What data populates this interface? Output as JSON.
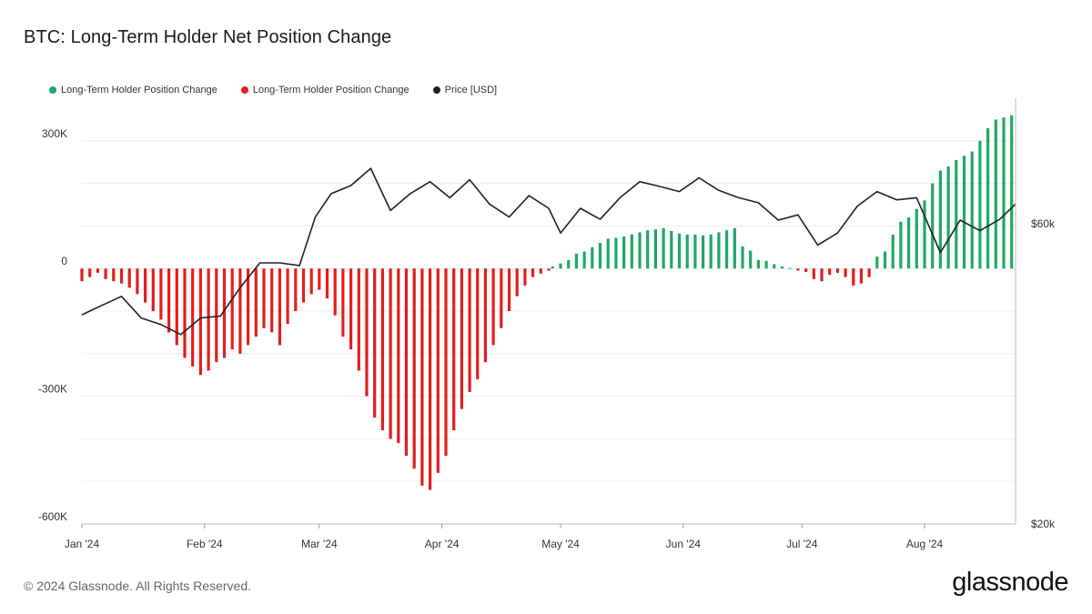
{
  "title": "BTC: Long-Term Holder Net Position Change",
  "legend": [
    {
      "label": "Long-Term Holder Position Change",
      "color": "#20a866"
    },
    {
      "label": "Long-Term Holder Position Change",
      "color": "#e11f1f"
    },
    {
      "label": "Price [USD]",
      "color": "#222222"
    }
  ],
  "footer": {
    "copyright": "© 2024 Glassnode. All Rights Reserved.",
    "logo": "glassnode"
  },
  "chart_data": {
    "type": "bar",
    "title": "BTC: Long-Term Holder Net Position Change",
    "x_range": [
      "2024-01-01",
      "2024-08-24"
    ],
    "x_ticks": [
      "Jan '24",
      "Feb '24",
      "Mar '24",
      "Apr '24",
      "May '24",
      "Jun '24",
      "Jul '24",
      "Aug '24"
    ],
    "y_left": {
      "ticks": [
        "300K",
        "0",
        "-300K",
        "-600K"
      ],
      "ylim": [
        -600000,
        400000
      ]
    },
    "y_right": {
      "ticks": [
        "$60k",
        "$20k"
      ],
      "scale": "log",
      "ylim": [
        20000,
        95000
      ]
    },
    "grid": true,
    "legend_position": "top-left",
    "series": [
      {
        "name": "Long-Term Holder Position Change",
        "color": "#20a866",
        "x": [
          "2024-04-29",
          "2024-05-01",
          "2024-05-03",
          "2024-05-05",
          "2024-05-07",
          "2024-05-09",
          "2024-05-11",
          "2024-05-13",
          "2024-05-15",
          "2024-05-17",
          "2024-05-19",
          "2024-05-21",
          "2024-05-23",
          "2024-05-25",
          "2024-05-27",
          "2024-05-29",
          "2024-05-31",
          "2024-06-02",
          "2024-06-04",
          "2024-06-06",
          "2024-06-08",
          "2024-06-10",
          "2024-06-12",
          "2024-06-14",
          "2024-06-16",
          "2024-06-18",
          "2024-06-20",
          "2024-06-22",
          "2024-06-24",
          "2024-06-26",
          "2024-06-28",
          "2024-07-20",
          "2024-07-22",
          "2024-07-24",
          "2024-07-26",
          "2024-07-28",
          "2024-07-30",
          "2024-08-01",
          "2024-08-03",
          "2024-08-05",
          "2024-08-07",
          "2024-08-09",
          "2024-08-11",
          "2024-08-13",
          "2024-08-15",
          "2024-08-17",
          "2024-08-19",
          "2024-08-21",
          "2024-08-23"
        ],
        "values": [
          5000,
          12000,
          20000,
          35000,
          40000,
          50000,
          60000,
          70000,
          72000,
          75000,
          80000,
          85000,
          90000,
          92000,
          95000,
          88000,
          82000,
          80000,
          80000,
          78000,
          80000,
          85000,
          90000,
          95000,
          52000,
          42000,
          20000,
          18000,
          10000,
          5000,
          1000,
          28000,
          40000,
          80000,
          110000,
          120000,
          140000,
          160000,
          200000,
          230000,
          240000,
          255000,
          265000,
          275000,
          300000,
          330000,
          350000,
          355000,
          360000
        ]
      },
      {
        "name": "Long-Term Holder Position Change",
        "color": "#e11f1f",
        "x": [
          "2024-01-01",
          "2024-01-03",
          "2024-01-05",
          "2024-01-07",
          "2024-01-09",
          "2024-01-11",
          "2024-01-13",
          "2024-01-15",
          "2024-01-17",
          "2024-01-19",
          "2024-01-21",
          "2024-01-23",
          "2024-01-25",
          "2024-01-27",
          "2024-01-29",
          "2024-01-31",
          "2024-02-02",
          "2024-02-04",
          "2024-02-06",
          "2024-02-08",
          "2024-02-10",
          "2024-02-12",
          "2024-02-14",
          "2024-02-16",
          "2024-02-18",
          "2024-02-20",
          "2024-02-22",
          "2024-02-24",
          "2024-02-26",
          "2024-02-28",
          "2024-03-01",
          "2024-03-03",
          "2024-03-05",
          "2024-03-07",
          "2024-03-09",
          "2024-03-11",
          "2024-03-13",
          "2024-03-15",
          "2024-03-17",
          "2024-03-19",
          "2024-03-21",
          "2024-03-23",
          "2024-03-25",
          "2024-03-27",
          "2024-03-29",
          "2024-03-31",
          "2024-04-02",
          "2024-04-04",
          "2024-04-06",
          "2024-04-08",
          "2024-04-10",
          "2024-04-12",
          "2024-04-14",
          "2024-04-16",
          "2024-04-18",
          "2024-04-20",
          "2024-04-22",
          "2024-04-24",
          "2024-04-26",
          "2024-04-28",
          "2024-06-30",
          "2024-07-02",
          "2024-07-04",
          "2024-07-06",
          "2024-07-08",
          "2024-07-10",
          "2024-07-12",
          "2024-07-14",
          "2024-07-16",
          "2024-07-18"
        ],
        "values": [
          -30000,
          -20000,
          -10000,
          -25000,
          -30000,
          -35000,
          -45000,
          -60000,
          -80000,
          -100000,
          -120000,
          -150000,
          -180000,
          -210000,
          -230000,
          -250000,
          -240000,
          -220000,
          -210000,
          -190000,
          -200000,
          -180000,
          -160000,
          -140000,
          -150000,
          -180000,
          -130000,
          -100000,
          -80000,
          -60000,
          -50000,
          -70000,
          -110000,
          -160000,
          -190000,
          -240000,
          -300000,
          -350000,
          -380000,
          -400000,
          -410000,
          -440000,
          -470000,
          -510000,
          -520000,
          -480000,
          -440000,
          -380000,
          -330000,
          -290000,
          -260000,
          -220000,
          -180000,
          -140000,
          -100000,
          -65000,
          -40000,
          -20000,
          -12000,
          -5000,
          -5000,
          -8000,
          -25000,
          -30000,
          -15000,
          -10000,
          -20000,
          -40000,
          -35000,
          -20000
        ]
      },
      {
        "name": "Price [USD]",
        "color": "#222222",
        "x": [
          "2024-01-01",
          "2024-01-06",
          "2024-01-11",
          "2024-01-16",
          "2024-01-21",
          "2024-01-26",
          "2024-01-31",
          "2024-02-05",
          "2024-02-10",
          "2024-02-15",
          "2024-02-20",
          "2024-02-25",
          "2024-02-29",
          "2024-03-04",
          "2024-03-09",
          "2024-03-14",
          "2024-03-19",
          "2024-03-24",
          "2024-03-29",
          "2024-04-03",
          "2024-04-08",
          "2024-04-13",
          "2024-04-18",
          "2024-04-23",
          "2024-04-28",
          "2024-05-01",
          "2024-05-06",
          "2024-05-11",
          "2024-05-16",
          "2024-05-21",
          "2024-05-26",
          "2024-05-31",
          "2024-06-05",
          "2024-06-10",
          "2024-06-15",
          "2024-06-20",
          "2024-06-25",
          "2024-06-30",
          "2024-07-05",
          "2024-07-10",
          "2024-07-15",
          "2024-07-20",
          "2024-07-25",
          "2024-07-30",
          "2024-08-05",
          "2024-08-10",
          "2024-08-15",
          "2024-08-20",
          "2024-08-24"
        ],
        "values": [
          43000,
          44500,
          46000,
          42500,
          41500,
          40000,
          42500,
          42800,
          47500,
          52000,
          52000,
          51500,
          61500,
          67000,
          69000,
          73500,
          63000,
          67000,
          70000,
          66000,
          70500,
          64500,
          61500,
          66500,
          63500,
          58000,
          63500,
          61000,
          66000,
          70000,
          68800,
          67500,
          71000,
          67800,
          66000,
          64800,
          60800,
          62000,
          55500,
          58000,
          64000,
          67500,
          65500,
          66000,
          54000,
          60800,
          58500,
          61000,
          64500
        ]
      }
    ]
  }
}
